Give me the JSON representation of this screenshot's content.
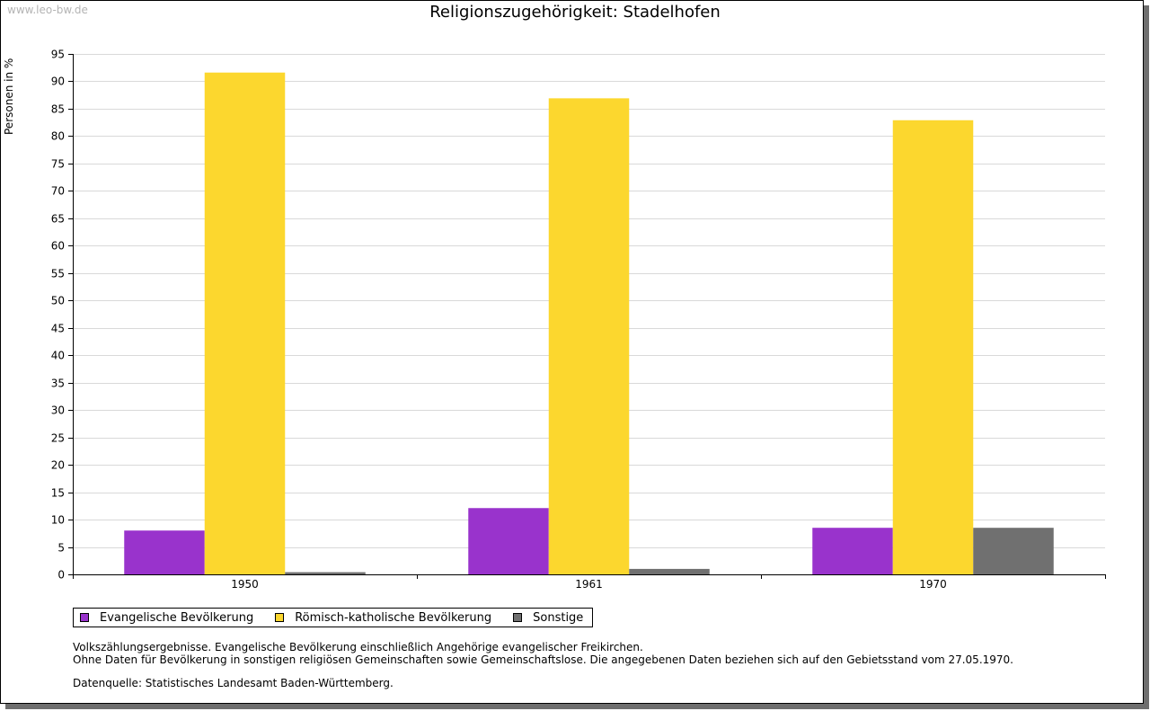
{
  "watermark": "www.leo-bw.de",
  "chart_data": {
    "type": "bar",
    "title": "Religionszugehörigkeit: Stadelhofen",
    "xlabel": "",
    "ylabel": "Personen in %",
    "ylim": [
      0,
      95
    ],
    "ytick_step": 5,
    "grid": true,
    "legend_position": "bottom-left",
    "categories": [
      "1950",
      "1961",
      "1970"
    ],
    "series": [
      {
        "name": "Evangelische Bevölkerung",
        "color": "#9933cc",
        "values": [
          8.0,
          12.1,
          8.5
        ]
      },
      {
        "name": "Römisch-katholische Bevölkerung",
        "color": "#fcd72e",
        "values": [
          91.6,
          86.9,
          82.9
        ]
      },
      {
        "name": "Sonstige",
        "color": "#707070",
        "values": [
          0.4,
          1.0,
          8.5
        ]
      }
    ]
  },
  "notes": {
    "line1": "Volkszählungsergebnisse. Evangelische Bevölkerung einschließlich Angehörige evangelischer Freikirchen.",
    "line2": "Ohne Daten für Bevölkerung in sonstigen religiösen Gemeinschaften sowie Gemeinschaftslose. Die angegebenen Daten beziehen sich auf den Gebietsstand vom 27.05.1970."
  },
  "source": "Datenquelle: Statistisches Landesamt Baden-Württemberg."
}
